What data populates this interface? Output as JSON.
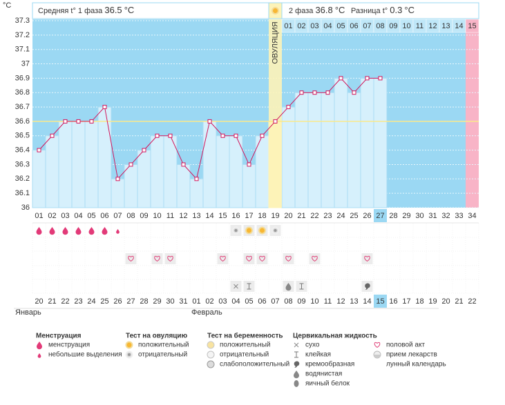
{
  "summary": {
    "phase1_label": "Средняя t° 1 фаза",
    "phase1_value": 36.5,
    "phase2_label": "2 фаза",
    "phase2_value": 36.8,
    "diff_label": "Разница t°",
    "diff_value": 0.3,
    "unit": "°C"
  },
  "chart_data": {
    "type": "line",
    "ylabel": "°C",
    "categories": [
      "01",
      "02",
      "03",
      "04",
      "05",
      "06",
      "07",
      "08",
      "09",
      "10",
      "11",
      "12",
      "13",
      "14",
      "15",
      "16",
      "17",
      "18",
      "19",
      "20",
      "21",
      "22",
      "23",
      "24",
      "25",
      "26",
      "27",
      "28",
      "29",
      "30",
      "31",
      "32",
      "33",
      "34"
    ],
    "values": [
      36.4,
      36.5,
      36.6,
      36.6,
      36.6,
      36.7,
      36.2,
      36.3,
      36.4,
      36.5,
      36.5,
      36.3,
      36.2,
      36.6,
      36.5,
      36.5,
      36.3,
      36.5,
      36.6,
      36.7,
      36.8,
      36.8,
      36.8,
      36.9,
      36.8,
      36.9,
      36.9,
      null,
      null,
      null,
      null,
      null,
      null,
      null
    ],
    "color": "#d3145a",
    "ylim": [
      36,
      37.3
    ],
    "yticks": [
      36,
      36.1,
      36.2,
      36.3,
      36.4,
      36.5,
      36.6,
      36.7,
      36.8,
      36.9,
      37,
      37.1,
      37.2,
      37.3
    ],
    "grid": true,
    "cover_line": 36.6,
    "ovulation_label": "ОВУЛЯЦИЯ",
    "ovulation_day": "19",
    "luteal_start": "20",
    "luteal_days": [
      "01",
      "02",
      "03",
      "04",
      "05",
      "06",
      "07",
      "08",
      "09",
      "10",
      "11",
      "12",
      "13",
      "14",
      "15"
    ],
    "highlight": "27"
  },
  "calendar": {
    "dates": [
      "20",
      "21",
      "22",
      "23",
      "24",
      "25",
      "26",
      "27",
      "28",
      "29",
      "30",
      "31",
      "01",
      "02",
      "03",
      "04",
      "05",
      "06",
      "07",
      "08",
      "09",
      "10",
      "11",
      "12",
      "13",
      "14",
      "15",
      "16",
      "17",
      "18",
      "19",
      "20",
      "21",
      "22"
    ],
    "weekend": [
      false,
      false,
      true,
      true,
      false,
      false,
      false,
      false,
      false,
      true,
      true,
      false,
      false,
      false,
      false,
      false,
      true,
      true,
      false,
      false,
      false,
      false,
      false,
      true,
      true,
      false,
      false,
      false,
      false,
      false,
      true,
      true,
      false,
      false
    ],
    "highlight": "15",
    "months": [
      "Январь",
      "Февраль"
    ]
  },
  "markers": [
    [
      {
        "day": "01",
        "icon": "drop"
      },
      {
        "day": "02",
        "icon": "drop"
      },
      {
        "day": "03",
        "icon": "drop"
      },
      {
        "day": "04",
        "icon": "drop"
      },
      {
        "day": "05",
        "icon": "drop"
      },
      {
        "day": "06",
        "icon": "drop"
      },
      {
        "day": "07",
        "icon": "drop-small"
      },
      {
        "day": "16",
        "icon": "ov-neg"
      },
      {
        "day": "17",
        "icon": "ov-pos"
      },
      {
        "day": "18",
        "icon": "ov-pos"
      },
      {
        "day": "19",
        "icon": "ov-neg"
      }
    ],
    [],
    [
      {
        "day": "08",
        "icon": "heart"
      },
      {
        "day": "10",
        "icon": "heart"
      },
      {
        "day": "11",
        "icon": "heart"
      },
      {
        "day": "15",
        "icon": "heart"
      },
      {
        "day": "17",
        "icon": "heart"
      },
      {
        "day": "18",
        "icon": "heart"
      },
      {
        "day": "20",
        "icon": "heart"
      },
      {
        "day": "22",
        "icon": "heart"
      },
      {
        "day": "26",
        "icon": "heart"
      }
    ],
    [],
    [
      {
        "day": "16",
        "icon": "dry"
      },
      {
        "day": "17",
        "icon": "sticky"
      },
      {
        "day": "20",
        "icon": "watery"
      },
      {
        "day": "21",
        "icon": "sticky"
      },
      {
        "day": "26",
        "icon": "creamy"
      }
    ]
  ],
  "legend": [
    {
      "title": "Менструация",
      "items": [
        {
          "label": "менструация",
          "icon": "drop"
        },
        {
          "label": "небольшие выделения",
          "icon": "drop-small"
        }
      ]
    },
    {
      "title": "Тест на овуляцию",
      "items": [
        {
          "label": "положительный",
          "icon": "ov-pos"
        },
        {
          "label": "отрицательный",
          "icon": "ov-neg"
        }
      ]
    },
    {
      "title": "Тест на беременность",
      "items": [
        {
          "label": "положительный",
          "icon": "preg-pos"
        },
        {
          "label": "отрицательный",
          "icon": "preg-neg"
        },
        {
          "label": "слабоположительный",
          "icon": "preg-weak"
        }
      ]
    },
    {
      "title": "Цервикальная жидкость",
      "items": [
        {
          "label": "сухо",
          "icon": "dry"
        },
        {
          "label": "клейкая",
          "icon": "sticky"
        },
        {
          "label": "кремообразная",
          "icon": "creamy"
        },
        {
          "label": "водянистая",
          "icon": "watery"
        },
        {
          "label": "яичный белок",
          "icon": "egg"
        }
      ]
    },
    {
      "items": [
        {
          "label": "половой акт",
          "icon": "heart"
        },
        {
          "label": "прием лекарств",
          "icon": "pill"
        },
        {
          "label": "лунный календарь",
          "icon": "moon"
        }
      ]
    }
  ]
}
